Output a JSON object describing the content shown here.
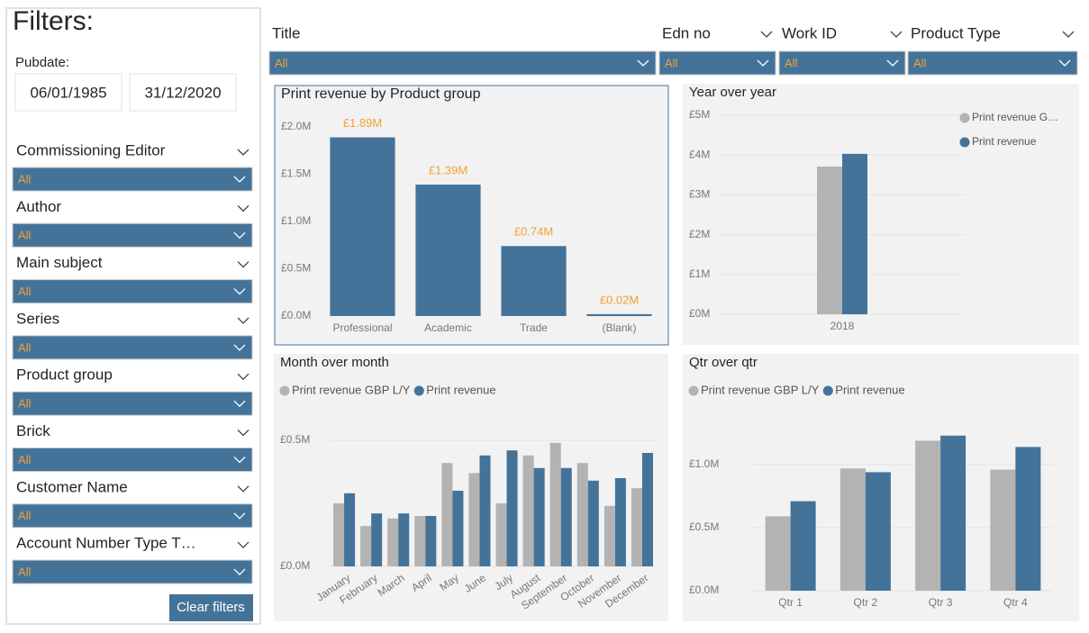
{
  "filters": {
    "title": "Filters:",
    "pubdate_label": "Pubdate:",
    "date_from": "06/01/1985",
    "date_to": "31/12/2020",
    "slicers": [
      {
        "label": "Commissioning Editor",
        "value": "All"
      },
      {
        "label": "Author",
        "value": "All"
      },
      {
        "label": "Main subject",
        "value": "All"
      },
      {
        "label": "Series",
        "value": "All"
      },
      {
        "label": "Product group",
        "value": "All"
      },
      {
        "label": "Brick",
        "value": "All"
      },
      {
        "label": "Customer Name",
        "value": "All"
      },
      {
        "label": "Account Number Type T…",
        "value": "All"
      }
    ],
    "clear_button": "Clear filters"
  },
  "top_slicers": [
    {
      "label": "Title",
      "value": "All"
    },
    {
      "label": "Edn no",
      "value": "All"
    },
    {
      "label": "Work ID",
      "value": "All"
    },
    {
      "label": "Product Type",
      "value": "All"
    }
  ],
  "chart_data": [
    {
      "type": "bar",
      "title": "Print revenue by Product group",
      "categories": [
        "Professional",
        "Academic",
        "Trade",
        "(Blank)"
      ],
      "values": [
        1890000,
        1390000,
        740000,
        20000
      ],
      "value_labels": [
        "£1.89M",
        "£1.39M",
        "£0.74M",
        "£0.02M"
      ],
      "color": "#44739a",
      "label_color": "#f4a032",
      "ylim": [
        0,
        2000000
      ],
      "yticks": [
        {
          "value": 0,
          "label": "£0.0M"
        },
        {
          "value": 500000,
          "label": "£0.5M"
        },
        {
          "value": 1000000,
          "label": "£1.0M"
        },
        {
          "value": 1500000,
          "label": "£1.5M"
        },
        {
          "value": 2000000,
          "label": "£2.0M"
        }
      ],
      "grid": false
    },
    {
      "type": "grouped_bar",
      "title": "Year over year",
      "categories": [
        "2018"
      ],
      "series": [
        {
          "name": "Print revenue G…",
          "color": "#b3b3b3",
          "values": [
            3710000
          ]
        },
        {
          "name": "Print revenue",
          "color": "#44739a",
          "values": [
            4030000
          ]
        }
      ],
      "ylim": [
        0,
        5000000
      ],
      "yticks": [
        {
          "value": 0,
          "label": "£0M"
        },
        {
          "value": 1000000,
          "label": "£1M"
        },
        {
          "value": 2000000,
          "label": "£2M"
        },
        {
          "value": 3000000,
          "label": "£3M"
        },
        {
          "value": 4000000,
          "label": "£4M"
        },
        {
          "value": 5000000,
          "label": "£5M"
        }
      ],
      "grid": true,
      "legend": "right"
    },
    {
      "type": "grouped_bar",
      "title": "Month over month",
      "categories": [
        "January",
        "February",
        "March",
        "April",
        "May",
        "June",
        "July",
        "August",
        "September",
        "October",
        "November",
        "December"
      ],
      "series": [
        {
          "name": "Print revenue GBP L/Y",
          "color": "#b3b3b3",
          "values": [
            250000,
            160000,
            190000,
            200000,
            410000,
            370000,
            250000,
            440000,
            490000,
            410000,
            240000,
            310000
          ]
        },
        {
          "name": "Print revenue",
          "color": "#44739a",
          "values": [
            290000,
            210000,
            210000,
            200000,
            300000,
            440000,
            460000,
            390000,
            390000,
            340000,
            350000,
            450000
          ]
        }
      ],
      "ylim": [
        0,
        500000
      ],
      "yticks": [
        {
          "value": 0,
          "label": "£0.0M"
        },
        {
          "value": 500000,
          "label": "£0.5M"
        }
      ],
      "grid": true,
      "legend": "top-left"
    },
    {
      "type": "grouped_bar",
      "title": "Qtr over qtr",
      "categories": [
        "Qtr 1",
        "Qtr 2",
        "Qtr 3",
        "Qtr 4"
      ],
      "series": [
        {
          "name": "Print revenue GBP L/Y",
          "color": "#b3b3b3",
          "values": [
            590000,
            970000,
            1190000,
            960000
          ]
        },
        {
          "name": "Print revenue",
          "color": "#44739a",
          "values": [
            710000,
            940000,
            1230000,
            1140000
          ]
        }
      ],
      "ylim": [
        0,
        1300000
      ],
      "yticks": [
        {
          "value": 0,
          "label": "£0.0M"
        },
        {
          "value": 500000,
          "label": "£0.5M"
        },
        {
          "value": 1000000,
          "label": "£1.0M"
        }
      ],
      "grid": true,
      "legend": "top-left"
    }
  ]
}
